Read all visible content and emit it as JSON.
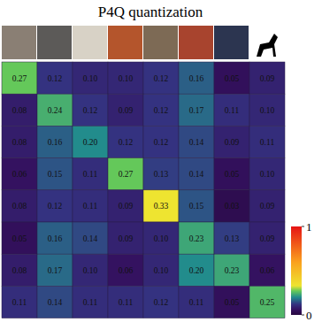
{
  "chart_data": {
    "type": "heatmap",
    "title": "P4Q quantization",
    "values": [
      [
        0.27,
        0.12,
        0.1,
        0.1,
        0.12,
        0.16,
        0.05,
        0.09
      ],
      [
        0.08,
        0.24,
        0.12,
        0.09,
        0.12,
        0.17,
        0.11,
        0.1
      ],
      [
        0.08,
        0.16,
        0.2,
        0.12,
        0.12,
        0.14,
        0.09,
        0.11
      ],
      [
        0.06,
        0.15,
        0.11,
        0.27,
        0.13,
        0.14,
        0.05,
        0.1
      ],
      [
        0.08,
        0.12,
        0.11,
        0.09,
        0.33,
        0.15,
        0.03,
        0.09
      ],
      [
        0.05,
        0.16,
        0.14,
        0.09,
        0.1,
        0.23,
        0.13,
        0.09
      ],
      [
        0.08,
        0.17,
        0.1,
        0.06,
        0.1,
        0.2,
        0.23,
        0.06
      ],
      [
        0.11,
        0.14,
        0.11,
        0.11,
        0.12,
        0.11,
        0.05,
        0.25
      ]
    ],
    "value_labels": [
      [
        "0.27",
        "0.12",
        "0.10",
        "0.10",
        "0.12",
        "0.16",
        "0.05",
        "0.09"
      ],
      [
        "0.08",
        "0.24",
        "0.12",
        "0.09",
        "0.12",
        "0.17",
        "0.11",
        "0.10"
      ],
      [
        "0.08",
        "0.16",
        "0.20",
        "0.12",
        "0.12",
        "0.14",
        "0.09",
        "0.11"
      ],
      [
        "0.06",
        "0.15",
        "0.11",
        "0.27",
        "0.13",
        "0.14",
        "0.05",
        "0.10"
      ],
      [
        "0.08",
        "0.12",
        "0.11",
        "0.09",
        "0.33",
        "0.15",
        "0.03",
        "0.09"
      ],
      [
        "0.05",
        "0.16",
        "0.14",
        "0.09",
        "0.10",
        "0.23",
        "0.13",
        "0.09"
      ],
      [
        "0.08",
        "0.17",
        "0.10",
        "0.06",
        "0.10",
        "0.20",
        "0.23",
        "0.06"
      ],
      [
        "0.11",
        "0.14",
        "0.11",
        "0.11",
        "0.12",
        "0.11",
        "0.05",
        "0.25"
      ]
    ],
    "data_labels": true,
    "colorbar": {
      "range": [
        0,
        1
      ],
      "ticks": [
        0,
        1
      ]
    }
  }
}
